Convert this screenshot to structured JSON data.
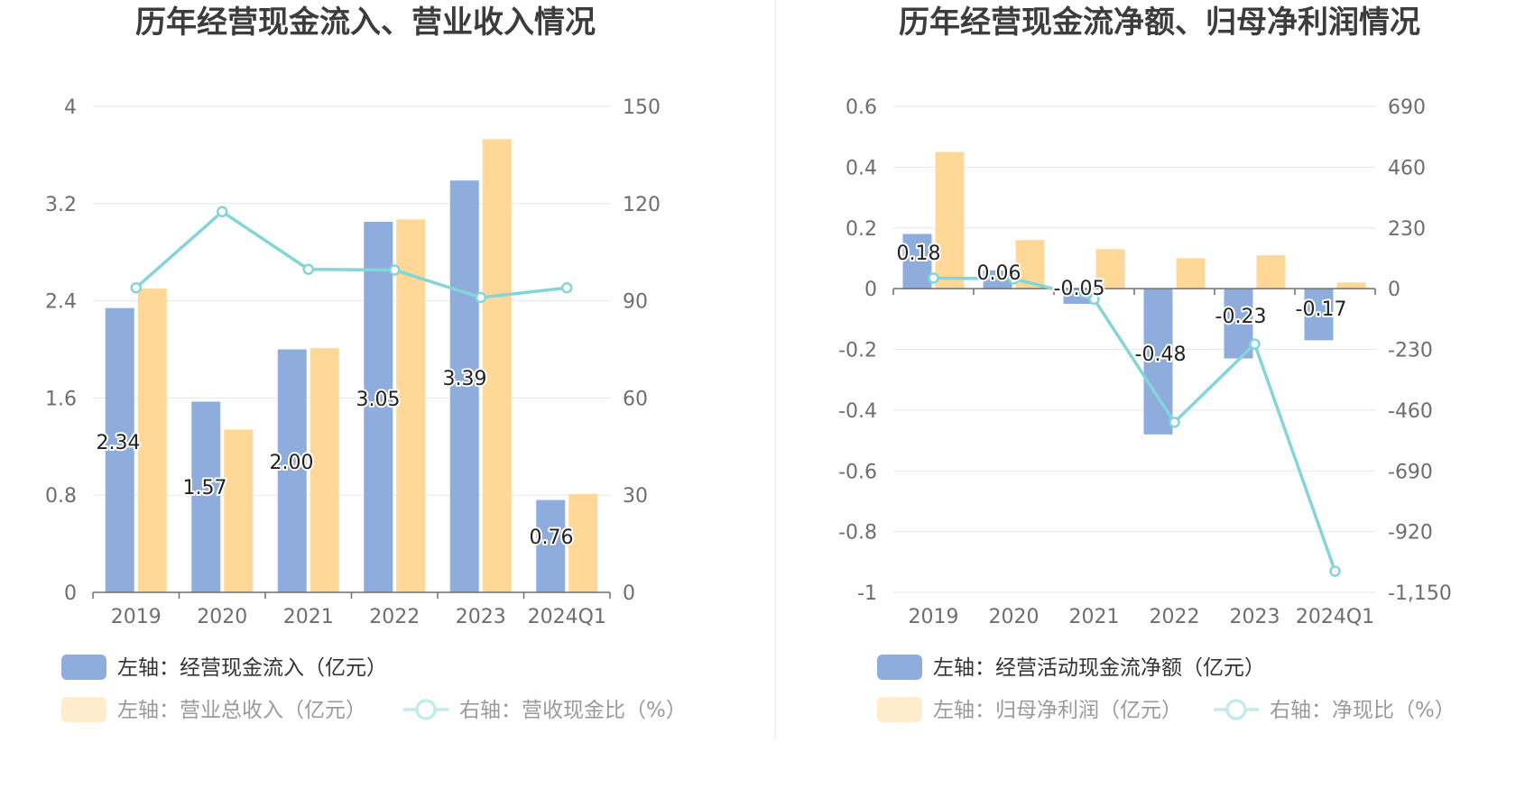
{
  "colors": {
    "bar_primary": "#8eaddc",
    "bar_secondary": "#ffd898",
    "line": "#84d4d8",
    "grid": "#e3e7ef",
    "axis": "#6e6e6e",
    "legend_active_text": "#333333",
    "legend_muted_text": "#9a9a9a",
    "legend_muted_bar": "#ffeccc",
    "legend_muted_line": "#c2ebec"
  },
  "chart_data": [
    {
      "type": "bar",
      "title": "历年经营现金流入、营业收入情况",
      "categories": [
        "2019",
        "2020",
        "2021",
        "2022",
        "2023",
        "2024Q1"
      ],
      "series": [
        {
          "name": "左轴：经营现金流入（亿元）",
          "axis": "left",
          "values": [
            2.34,
            1.57,
            2.0,
            3.05,
            3.39,
            0.76
          ],
          "labels": [
            "2.34",
            "1.57",
            "2.00",
            "3.05",
            "3.39",
            "0.76"
          ]
        },
        {
          "name": "左轴：营业总收入（亿元）",
          "axis": "left",
          "values": [
            2.5,
            1.34,
            2.01,
            3.07,
            3.73,
            0.81
          ]
        },
        {
          "name": "右轴：营收现金比（%）",
          "axis": "right",
          "type": "line",
          "values": [
            94.0,
            117.5,
            99.7,
            99.5,
            91.0,
            94.0
          ]
        }
      ],
      "y_left": {
        "min": 0,
        "max": 4,
        "ticks": [
          "0",
          "0.8",
          "1.6",
          "2.4",
          "3.2",
          "4"
        ]
      },
      "y_right": {
        "min": 0,
        "max": 150,
        "ticks": [
          "0",
          "30",
          "60",
          "90",
          "120",
          "150"
        ]
      },
      "grid": true,
      "legend_position": "bottom"
    },
    {
      "type": "bar",
      "title": "历年经营现金流净额、归母净利润情况",
      "categories": [
        "2019",
        "2020",
        "2021",
        "2022",
        "2023",
        "2024Q1"
      ],
      "series": [
        {
          "name": "左轴：经营活动现金流净额（亿元）",
          "axis": "left",
          "values": [
            0.18,
            0.06,
            -0.05,
            -0.48,
            -0.23,
            -0.17
          ],
          "labels": [
            "0.18",
            "0.06",
            "-0.05",
            "-0.48",
            "-0.23",
            "-0.17"
          ]
        },
        {
          "name": "左轴：归母净利润（亿元）",
          "axis": "left",
          "values": [
            0.45,
            0.16,
            0.13,
            0.1,
            0.11,
            0.02
          ]
        },
        {
          "name": "右轴：净现比（%）",
          "axis": "right",
          "type": "line",
          "values": [
            40,
            37,
            -40,
            -506,
            -210,
            -1070
          ]
        }
      ],
      "y_left": {
        "min": -1,
        "max": 0.6,
        "ticks": [
          "-1",
          "-0.8",
          "-0.6",
          "-0.4",
          "-0.2",
          "0",
          "0.2",
          "0.4",
          "0.6"
        ]
      },
      "y_right": {
        "min": -1150,
        "max": 690,
        "ticks": [
          "-1,150",
          "-920",
          "-690",
          "-460",
          "-230",
          "0",
          "230",
          "460",
          "690"
        ]
      },
      "grid": true,
      "legend_position": "bottom"
    }
  ]
}
